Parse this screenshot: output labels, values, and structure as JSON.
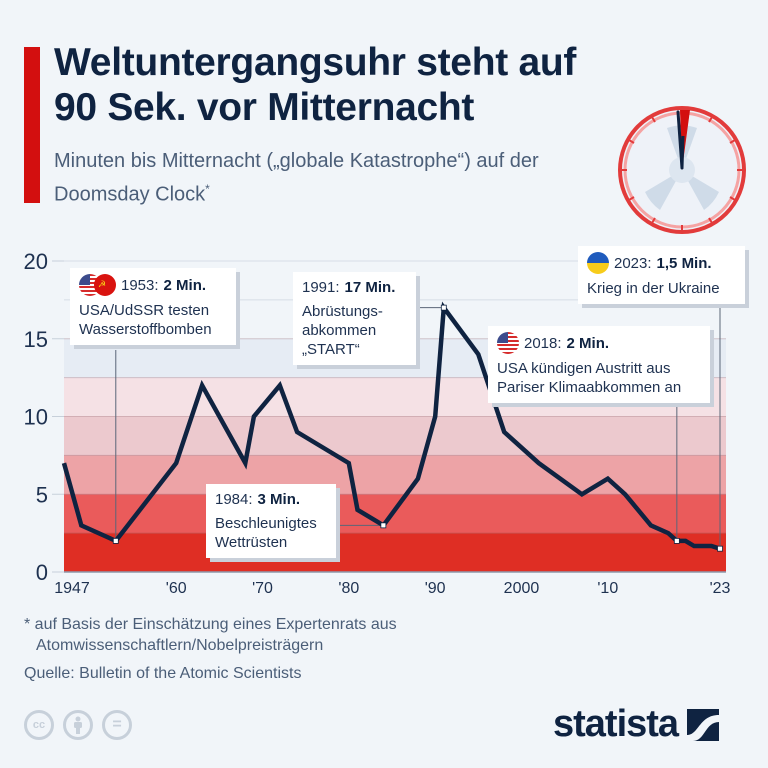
{
  "header": {
    "title": "Weltuntergangsuhr steht auf 90 Sek. vor Mitternacht",
    "subtitle": "Minuten bis Mitternacht („globale Katastrophe“) auf der Doomsday Clock",
    "subtitle_mark": "*"
  },
  "colors": {
    "accent": "#d30f0f",
    "line": "#0f2341",
    "bands": [
      "#df2e24",
      "#ea5b5b",
      "#eda3a6",
      "#ecc9ce",
      "#f5e1e5",
      "#e6ecf4"
    ]
  },
  "chart_data": {
    "type": "line",
    "title": "Weltuntergangsuhr steht auf 90 Sek. vor Mitternacht",
    "xlabel": "",
    "ylabel": "Minuten bis Mitternacht",
    "xlim": [
      1947,
      2023
    ],
    "ylim": [
      0,
      20
    ],
    "yticks": [
      0,
      5,
      10,
      15,
      20
    ],
    "xticks": [
      {
        "year": 1947,
        "label": "1947"
      },
      {
        "year": 1960,
        "label": "'60"
      },
      {
        "year": 1970,
        "label": "'70"
      },
      {
        "year": 1980,
        "label": "'80"
      },
      {
        "year": 1990,
        "label": "'90"
      },
      {
        "year": 2000,
        "label": "2000"
      },
      {
        "year": 2010,
        "label": "'10"
      },
      {
        "year": 2023,
        "label": "'23"
      }
    ],
    "grid": true,
    "band_edges": [
      0,
      2.5,
      5,
      7.5,
      10,
      12.5,
      15
    ],
    "series": [
      {
        "name": "Minuten bis Mitternacht",
        "x": [
          1947,
          1949,
          1953,
          1960,
          1963,
          1968,
          1969,
          1972,
          1974,
          1980,
          1981,
          1984,
          1988,
          1990,
          1991,
          1995,
          1998,
          2002,
          2007,
          2010,
          2012,
          2015,
          2017,
          2018,
          2019,
          2020,
          2022,
          2023
        ],
        "values": [
          7,
          3,
          2,
          7,
          12,
          7,
          10,
          12,
          9,
          7,
          4,
          3,
          6,
          10,
          17,
          14,
          9,
          7,
          5,
          6,
          5,
          3,
          2.5,
          2,
          2,
          1.67,
          1.67,
          1.5
        ]
      }
    ],
    "annotations": [
      {
        "year": 1953,
        "value": 2,
        "date": "1953:",
        "value_label": "2 Min.",
        "text": [
          "USA/UdSSR testen",
          "Wasserstoffbomben"
        ],
        "flags": [
          "us",
          "su"
        ]
      },
      {
        "year": 1984,
        "value": 3,
        "date": "1984:",
        "value_label": "3 Min.",
        "text": [
          "Beschleunigtes",
          "Wettrüsten"
        ],
        "flags": []
      },
      {
        "year": 1991,
        "value": 17,
        "date": "1991:",
        "value_label": "17 Min.",
        "text": [
          "Abrüstungs-",
          "abkommen",
          "„START“"
        ],
        "flags": []
      },
      {
        "year": 2018,
        "value": 2,
        "date": "2018:",
        "value_label": "2 Min.",
        "text": [
          "USA kündigen Austritt aus",
          "Pariser Klimaabkommen an"
        ],
        "flags": [
          "us"
        ]
      },
      {
        "year": 2023,
        "value": 1.5,
        "date": "2023:",
        "value_label": "1,5 Min.",
        "text": [
          "Krieg in der Ukraine"
        ],
        "flags": [
          "ua"
        ]
      }
    ]
  },
  "footer": {
    "note_line1": "* auf Basis der Einschätzung eines Expertenrats aus",
    "note_line2": "Atomwissenschaftlern/Nobelpreisträgern",
    "source": "Quelle: Bulletin of the Atomic Scientists",
    "cc_icons": [
      "cc",
      "by",
      "nd"
    ],
    "cc_labels": {
      "cc": "cc",
      "nd": "="
    },
    "brand": "statista"
  }
}
